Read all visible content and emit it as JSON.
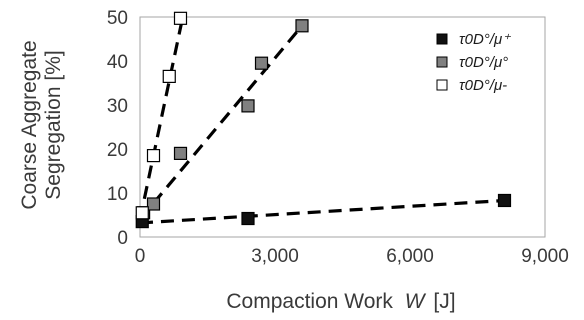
{
  "chart_data": {
    "type": "scatter",
    "xlabel_text": "Compaction Work",
    "xlabel_var": "W",
    "xlabel_unit": "[J]",
    "ylabel_line1": "Coarse Aggregate",
    "ylabel_line2": "Segregation [%]",
    "xlim": [
      0,
      9000
    ],
    "ylim": [
      0,
      50
    ],
    "x_ticks": [
      "0",
      "3,000",
      "6,000",
      "9,000"
    ],
    "y_ticks": [
      "0",
      "10",
      "20",
      "30",
      "40",
      "50"
    ],
    "legend_position": "top-right",
    "grid": false,
    "series": [
      {
        "name": "τ0D°/μ⁺",
        "marker_fill": "#111111",
        "points": [
          [
            50,
            3.5
          ],
          [
            2400,
            4.2
          ],
          [
            8100,
            8.3
          ]
        ],
        "trendline": [
          [
            0,
            3.2
          ],
          [
            8100,
            8.3
          ]
        ]
      },
      {
        "name": "τ0D°/μ°",
        "marker_fill": "#808080",
        "points": [
          [
            80,
            5.5
          ],
          [
            300,
            7.5
          ],
          [
            900,
            19
          ],
          [
            2400,
            29.8
          ],
          [
            2700,
            39.5
          ],
          [
            3600,
            48
          ]
        ],
        "trendline": [
          [
            0,
            4
          ],
          [
            3600,
            48
          ]
        ]
      },
      {
        "name": "τ0D°/μ-",
        "marker_fill": "#ffffff",
        "points": [
          [
            50,
            5.5
          ],
          [
            300,
            18.5
          ],
          [
            650,
            36.5
          ],
          [
            900,
            49.7
          ]
        ],
        "trendline": [
          [
            0,
            4
          ],
          [
            950,
            50
          ]
        ]
      }
    ]
  }
}
